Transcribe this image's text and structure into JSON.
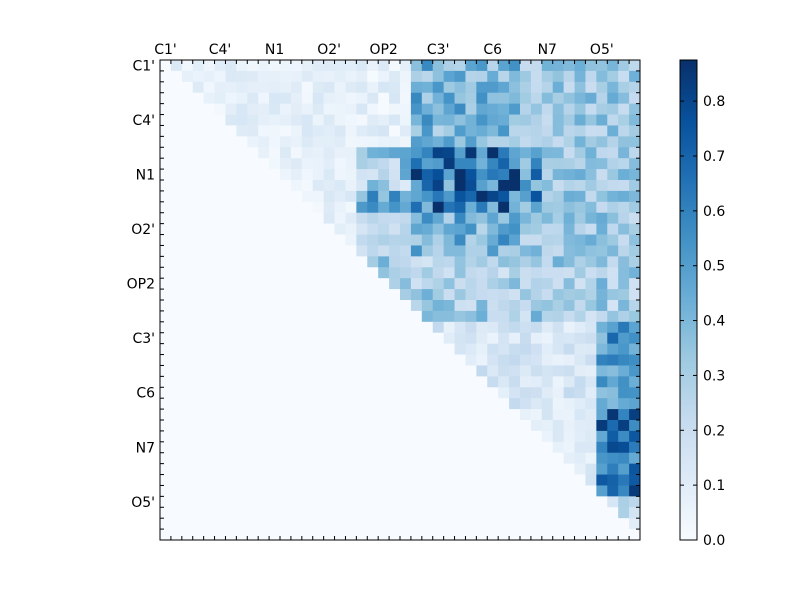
{
  "chart_data": {
    "type": "heatmap",
    "title": "",
    "xlabel": "",
    "ylabel": "",
    "x_tick_labels": [
      "C1'",
      "C4'",
      "N1",
      "O2'",
      "OP2",
      "C3'",
      "C6",
      "N7",
      "O5'"
    ],
    "y_tick_labels": [
      "C1'",
      "C4'",
      "N1",
      "O2'",
      "OP2",
      "C3'",
      "C6",
      "N7",
      "O5'"
    ],
    "x_tick_label_position": "top",
    "grid_size": 44,
    "label_every": 5,
    "colormap": "Blues",
    "colormap_stops": [
      "#f7fbff",
      "#deebf7",
      "#c6dbef",
      "#9ecae1",
      "#6baed6",
      "#4292c6",
      "#2171b5",
      "#08519c",
      "#08306b"
    ],
    "value_range": [
      0.0,
      0.875
    ],
    "colorbar": {
      "ticks": [
        0.0,
        0.1,
        0.2,
        0.3,
        0.4,
        0.5,
        0.6,
        0.7,
        0.8
      ],
      "tick_labels": [
        "0.0",
        "0.1",
        "0.2",
        "0.3",
        "0.4",
        "0.5",
        "0.6",
        "0.7",
        "0.8"
      ],
      "position": "right"
    },
    "upper_triangle_only": true,
    "grid": false,
    "values_note": "approximate upper-triangular correlation matrix read from colour intensity"
  }
}
